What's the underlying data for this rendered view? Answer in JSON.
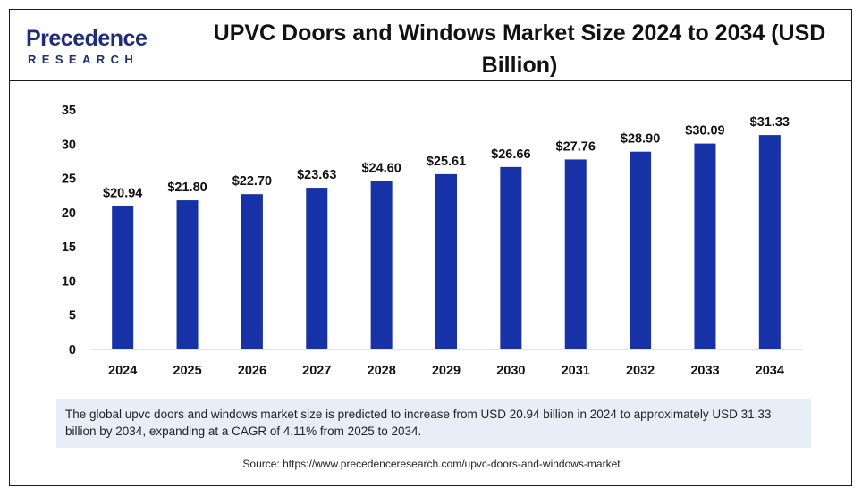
{
  "brand": {
    "logo_main": "Precedence",
    "logo_sub": "RESEARCH",
    "color": "#1f2e7a"
  },
  "header": {
    "title": "UPVC Doors and Windows Market Size 2024 to 2034 (USD Billion)"
  },
  "chart_data": {
    "type": "bar",
    "title": "UPVC Doors and Windows Market Size 2024 to 2034 (USD Billion)",
    "xlabel": "",
    "ylabel": "",
    "categories": [
      "2024",
      "2025",
      "2026",
      "2027",
      "2028",
      "2029",
      "2030",
      "2031",
      "2032",
      "2033",
      "2034"
    ],
    "values": [
      20.94,
      21.8,
      22.7,
      23.63,
      24.6,
      25.61,
      26.66,
      27.76,
      28.9,
      30.09,
      31.33
    ],
    "value_labels": [
      "$20.94",
      "$21.80",
      "$22.70",
      "$23.63",
      "$24.60",
      "$25.61",
      "$26.66",
      "$27.76",
      "$28.90",
      "$30.09",
      "$31.33"
    ],
    "ylim": [
      0,
      35
    ],
    "yticks": [
      "0",
      "5",
      "10",
      "15",
      "20",
      "25",
      "30",
      "35"
    ],
    "grid": false,
    "legend": "none",
    "bar_color": "#1632a6"
  },
  "note": {
    "text": "The global upvc doors and windows market size is predicted to increase from USD 20.94 billion in 2024 to approximately USD 31.33 billion by 2034, expanding at a CAGR of 4.11% from 2025 to 2034."
  },
  "source": {
    "text": "Source: https://www.precedenceresearch.com/upvc-doors-and-windows-market"
  }
}
